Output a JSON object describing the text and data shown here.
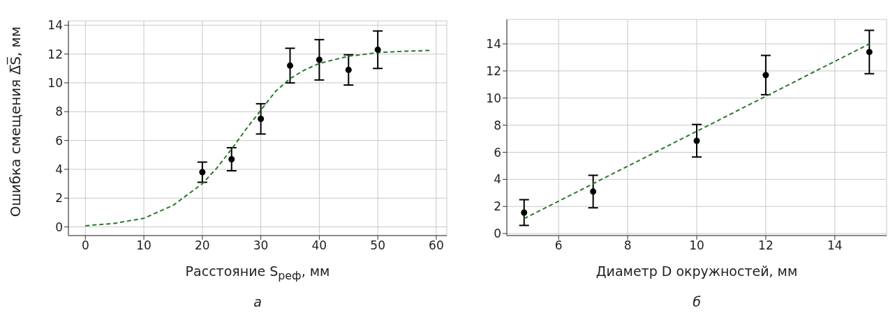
{
  "chart_data": [
    {
      "type": "scatter",
      "xlabel": "Расстояние S$_{реф}$, мм",
      "ylabel": "Ошибка смещения Δ̅S̅, мм",
      "annotations": [
        "а"
      ],
      "x": [
        20,
        25,
        30,
        35,
        40,
        45,
        50
      ],
      "xlim": [
        -2.9,
        61.8
      ],
      "xticks": [
        0,
        10,
        20,
        30,
        40,
        50,
        60
      ],
      "ylim": [
        -0.6,
        14.3
      ],
      "yticks": [
        0,
        2,
        4,
        6,
        8,
        10,
        12,
        14
      ],
      "grid": true,
      "series": [
        {
          "marker": "circle",
          "color": "#000000",
          "values": [
            3.8,
            4.7,
            7.5,
            11.2,
            11.6,
            10.9,
            12.3
          ],
          "errors": [
            0.7,
            0.8,
            1.05,
            1.2,
            1.4,
            1.05,
            1.3
          ]
        },
        {
          "type": "line",
          "color": "#2a7a2a",
          "line_style": "dashed",
          "x": [
            0,
            5,
            10,
            15,
            20,
            22.5,
            25,
            27.5,
            30,
            32.5,
            35,
            37.5,
            40,
            45,
            50,
            55,
            59
          ],
          "values": [
            0.08,
            0.25,
            0.6,
            1.5,
            3.0,
            4.1,
            5.4,
            6.8,
            8.1,
            9.4,
            10.3,
            10.9,
            11.35,
            11.85,
            12.1,
            12.2,
            12.25
          ]
        }
      ]
    },
    {
      "type": "scatter",
      "xlabel": "Диаметр D окружностей, мм",
      "annotations": [
        "б"
      ],
      "x": [
        5,
        7,
        10,
        12,
        15
      ],
      "xlim": [
        4.5,
        15.5
      ],
      "xticks": [
        6,
        8,
        10,
        12,
        14
      ],
      "ylim": [
        -0.15,
        15.8
      ],
      "yticks": [
        0,
        2,
        4,
        6,
        8,
        10,
        12,
        14
      ],
      "grid": true,
      "series": [
        {
          "marker": "circle",
          "color": "#000000",
          "values": [
            1.55,
            3.1,
            6.85,
            11.7,
            13.4
          ],
          "errors": [
            0.95,
            1.2,
            1.2,
            1.45,
            1.6
          ]
        },
        {
          "type": "line",
          "color": "#2a7a2a",
          "line_style": "dashed",
          "x": [
            5,
            15
          ],
          "values": [
            1.1,
            14.0
          ]
        }
      ]
    }
  ]
}
